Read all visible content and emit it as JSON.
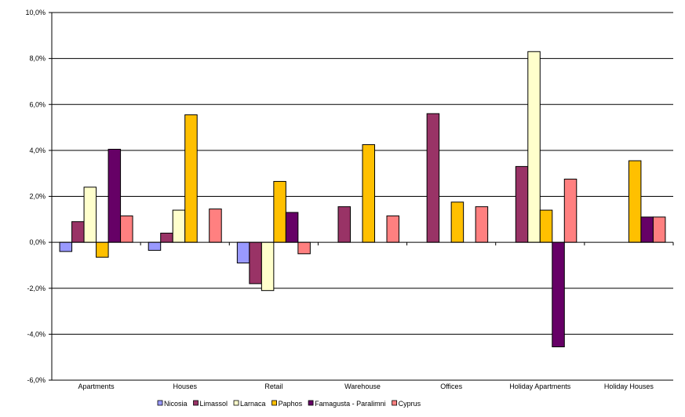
{
  "chart_data": {
    "type": "bar",
    "title": "",
    "xlabel": "",
    "ylabel": "",
    "categories": [
      "Apartments",
      "Houses",
      "Retail",
      "Warehouse",
      "Offices",
      "Holiday Apartments",
      "Holiday Houses"
    ],
    "ylim": [
      -6.0,
      10.0
    ],
    "yticks": [
      -6.0,
      -4.0,
      -2.0,
      0.0,
      2.0,
      4.0,
      6.0,
      8.0,
      10.0
    ],
    "ytick_labels": [
      "-6,0%",
      "-4,0%",
      "-2,0%",
      "0,0%",
      "2,0%",
      "4,0%",
      "6,0%",
      "8,0%",
      "10,0%"
    ],
    "grid": true,
    "legend_position": "bottom",
    "series": [
      {
        "name": "Nicosia",
        "color": "#9999ff",
        "values": [
          -0.4,
          -0.35,
          -0.9,
          null,
          null,
          null,
          null
        ]
      },
      {
        "name": "Limassol",
        "color": "#993366",
        "values": [
          0.9,
          0.4,
          -1.8,
          1.55,
          5.6,
          3.3,
          null
        ]
      },
      {
        "name": "Larnaca",
        "color": "#ffffcc",
        "values": [
          2.4,
          1.4,
          -2.1,
          null,
          null,
          8.3,
          null
        ]
      },
      {
        "name": "Paphos",
        "color": "#ffc000",
        "values": [
          -0.65,
          5.55,
          2.65,
          4.25,
          1.75,
          1.4,
          3.55
        ]
      },
      {
        "name": "Famagusta - Paralimni",
        "color": "#660066",
        "values": [
          4.05,
          null,
          1.3,
          null,
          null,
          -4.55,
          1.1
        ]
      },
      {
        "name": "Cyprus",
        "color": "#ff8080",
        "values": [
          1.15,
          1.45,
          -0.5,
          1.15,
          1.55,
          2.75,
          1.1
        ]
      }
    ]
  }
}
